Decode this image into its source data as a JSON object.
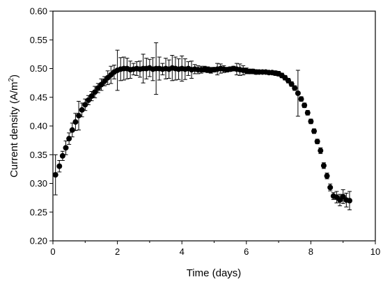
{
  "chart_data": {
    "type": "scatter",
    "title": "",
    "xlabel": "Time (days)",
    "ylabel_prefix": "Current density (A/m",
    "ylabel_sup": "2",
    "ylabel_suffix": ")",
    "xlim": [
      0,
      10
    ],
    "ylim": [
      0.2,
      0.6
    ],
    "x_ticks": [
      0,
      2,
      4,
      6,
      8,
      10
    ],
    "x_tick_labels": [
      "0",
      "2",
      "4",
      "6",
      "8",
      "10"
    ],
    "y_ticks": [
      0.2,
      0.25,
      0.3,
      0.35,
      0.4,
      0.45,
      0.5,
      0.55,
      0.6
    ],
    "y_tick_labels": [
      "0.20",
      "0.25",
      "0.30",
      "0.35",
      "0.40",
      "0.45",
      "0.50",
      "0.55",
      "0.60"
    ],
    "grid": false,
    "legend": "none",
    "marker_color": "#000000",
    "series": [
      {
        "x": [
          0.08,
          0.2,
          0.3,
          0.4,
          0.5,
          0.6,
          0.7,
          0.8,
          0.9,
          1.0,
          1.1,
          1.2,
          1.3,
          1.4,
          1.5,
          1.6,
          1.7,
          1.8,
          1.9,
          2.0,
          2.1,
          2.2,
          2.3,
          2.4,
          2.5,
          2.6,
          2.7,
          2.8,
          2.9,
          3.0,
          3.1,
          3.2,
          3.3,
          3.4,
          3.5,
          3.6,
          3.7,
          3.8,
          3.9,
          4.0,
          4.1,
          4.2,
          4.3,
          4.4,
          4.5,
          4.6,
          4.7,
          4.8,
          4.9,
          5.0,
          5.1,
          5.2,
          5.3,
          5.4,
          5.5,
          5.6,
          5.7,
          5.8,
          5.9,
          6.0,
          6.1,
          6.2,
          6.3,
          6.4,
          6.5,
          6.6,
          6.7,
          6.8,
          6.9,
          7.0,
          7.1,
          7.2,
          7.3,
          7.4,
          7.5,
          7.6,
          7.7,
          7.8,
          7.9,
          8.0,
          8.1,
          8.2,
          8.3,
          8.4,
          8.5,
          8.6,
          8.7,
          8.8,
          8.9,
          9.0,
          9.1,
          9.2
        ],
        "y": [
          0.315,
          0.33,
          0.348,
          0.362,
          0.378,
          0.393,
          0.407,
          0.418,
          0.428,
          0.437,
          0.445,
          0.452,
          0.459,
          0.466,
          0.472,
          0.478,
          0.484,
          0.489,
          0.494,
          0.497,
          0.499,
          0.5,
          0.5,
          0.498,
          0.499,
          0.5,
          0.499,
          0.5,
          0.5,
          0.501,
          0.499,
          0.5,
          0.5,
          0.499,
          0.5,
          0.499,
          0.501,
          0.5,
          0.499,
          0.5,
          0.499,
          0.5,
          0.498,
          0.499,
          0.498,
          0.498,
          0.499,
          0.498,
          0.497,
          0.498,
          0.499,
          0.5,
          0.499,
          0.498,
          0.499,
          0.5,
          0.499,
          0.498,
          0.497,
          0.496,
          0.495,
          0.495,
          0.494,
          0.494,
          0.494,
          0.494,
          0.493,
          0.493,
          0.492,
          0.491,
          0.488,
          0.484,
          0.479,
          0.473,
          0.466,
          0.457,
          0.447,
          0.436,
          0.423,
          0.408,
          0.391,
          0.373,
          0.357,
          0.331,
          0.313,
          0.293,
          0.278,
          0.276,
          0.271,
          0.277,
          0.271,
          0.27
        ],
        "err": [
          0.035,
          0.01,
          0.008,
          0.012,
          0.01,
          0.012,
          0.015,
          0.025,
          0.012,
          0.01,
          0.008,
          0.008,
          0.01,
          0.008,
          0.01,
          0.008,
          0.012,
          0.015,
          0.012,
          0.035,
          0.02,
          0.02,
          0.018,
          0.015,
          0.01,
          0.012,
          0.014,
          0.025,
          0.018,
          0.015,
          0.02,
          0.045,
          0.02,
          0.01,
          0.018,
          0.016,
          0.022,
          0.02,
          0.018,
          0.022,
          0.018,
          0.012,
          0.015,
          0.008,
          0.007,
          0.006,
          0.005,
          0.005,
          0.005,
          0.004,
          0.01,
          0.008,
          0.006,
          0.004,
          0.004,
          0.004,
          0.01,
          0.01,
          0.008,
          0.005,
          0.004,
          0.004,
          0.004,
          0.003,
          0.003,
          0.003,
          0.003,
          0.003,
          0.004,
          0.004,
          0.004,
          0.004,
          0.004,
          0.004,
          0.004,
          0.04,
          0.004,
          0.004,
          0.004,
          0.004,
          0.004,
          0.004,
          0.005,
          0.005,
          0.005,
          0.006,
          0.006,
          0.01,
          0.01,
          0.012,
          0.012,
          0.016
        ]
      }
    ]
  }
}
